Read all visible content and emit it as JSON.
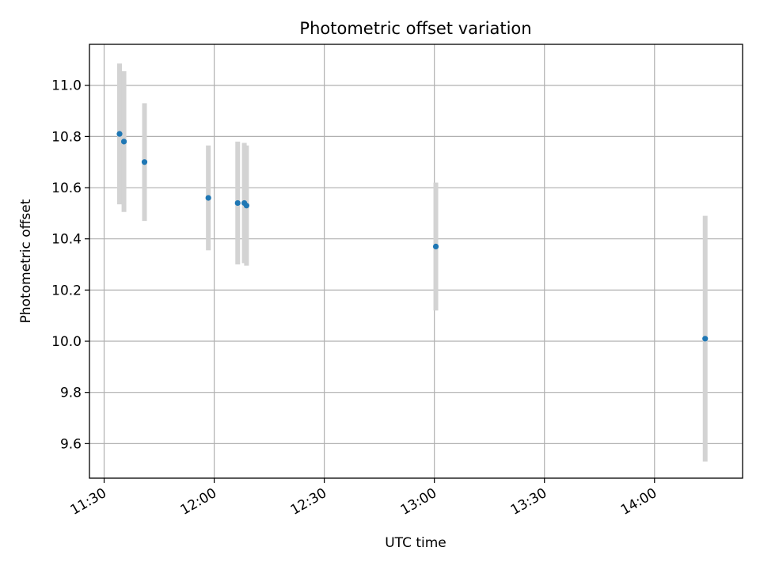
{
  "chart_data": {
    "type": "scatter",
    "title": "Photometric offset variation",
    "xlabel": "UTC time",
    "ylabel": "Photometric offset",
    "x_unit": "UTC time of day",
    "xlim": [
      "11:26",
      "14:24"
    ],
    "ylim": [
      9.465,
      11.16
    ],
    "x_ticks": [
      "11:30",
      "12:00",
      "12:30",
      "13:00",
      "13:30",
      "14:00"
    ],
    "y_ticks": [
      9.6,
      9.8,
      10.0,
      10.2,
      10.4,
      10.6,
      10.8,
      11.0
    ],
    "y_tick_labels": [
      "9.6",
      "9.8",
      "10.0",
      "10.2",
      "10.4",
      "10.6",
      "10.8",
      "11.0"
    ],
    "grid": true,
    "point_color": "#1f77b4",
    "errorbar_color": "#d3d3d3",
    "points": [
      {
        "time": "11:34:12",
        "y": 10.81,
        "err": 0.275
      },
      {
        "time": "11:35:24",
        "y": 10.78,
        "err": 0.275
      },
      {
        "time": "11:41:00",
        "y": 10.7,
        "err": 0.23
      },
      {
        "time": "11:58:24",
        "y": 10.56,
        "err": 0.205
      },
      {
        "time": "12:06:24",
        "y": 10.54,
        "err": 0.24
      },
      {
        "time": "12:08:12",
        "y": 10.54,
        "err": 0.235
      },
      {
        "time": "12:08:48",
        "y": 10.53,
        "err": 0.235
      },
      {
        "time": "13:00:24",
        "y": 10.37,
        "err": 0.25
      },
      {
        "time": "14:13:48",
        "y": 10.01,
        "err": 0.48
      }
    ]
  }
}
